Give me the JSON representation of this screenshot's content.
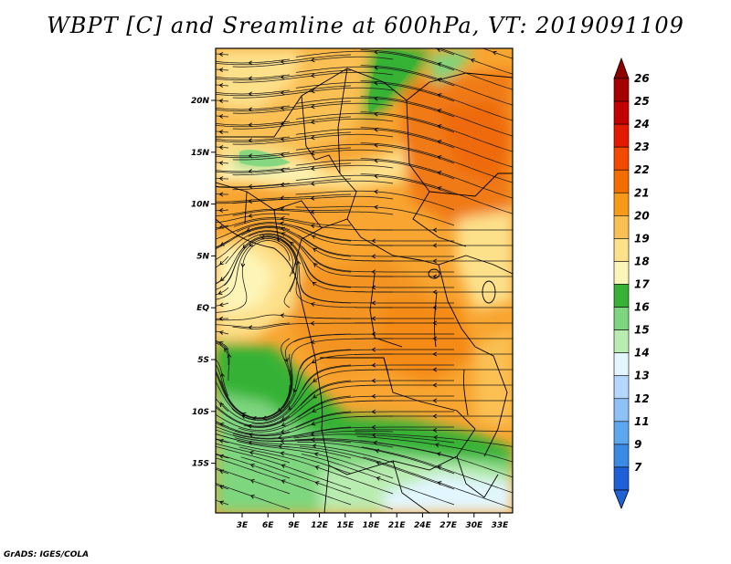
{
  "title": "WBPT [C] and Sreamline at 600hPa, VT: 2019091109",
  "credit": "GrADS: IGES/COLA",
  "map": {
    "lon_range": [
      0,
      35
    ],
    "lat_range": [
      -20,
      25
    ],
    "lon_ticks": [
      {
        "value": 3,
        "label": "3E"
      },
      {
        "value": 6,
        "label": "6E"
      },
      {
        "value": 9,
        "label": "9E"
      },
      {
        "value": 12,
        "label": "12E"
      },
      {
        "value": 15,
        "label": "15E"
      },
      {
        "value": 18,
        "label": "18E"
      },
      {
        "value": 21,
        "label": "21E"
      },
      {
        "value": 24,
        "label": "24E"
      },
      {
        "value": 27,
        "label": "27E"
      },
      {
        "value": 30,
        "label": "30E"
      },
      {
        "value": 33,
        "label": "33E"
      }
    ],
    "lat_ticks": [
      {
        "value": 20,
        "label": "20N"
      },
      {
        "value": 15,
        "label": "15N"
      },
      {
        "value": 10,
        "label": "10N"
      },
      {
        "value": 5,
        "label": "5N"
      },
      {
        "value": 0,
        "label": "EQ"
      },
      {
        "value": -5,
        "label": "5S"
      },
      {
        "value": -10,
        "label": "10S"
      },
      {
        "value": -15,
        "label": "15S"
      }
    ]
  },
  "colorbar": {
    "levels": [
      {
        "label": "26",
        "color": "#a50000"
      },
      {
        "label": "25",
        "color": "#c20000"
      },
      {
        "label": "24",
        "color": "#e11a00"
      },
      {
        "label": "23",
        "color": "#f24a00"
      },
      {
        "label": "22",
        "color": "#f26e00"
      },
      {
        "label": "21",
        "color": "#f79a1a"
      },
      {
        "label": "20",
        "color": "#fbc053"
      },
      {
        "label": "19",
        "color": "#fde08a"
      },
      {
        "label": "18",
        "color": "#fdf5b8"
      },
      {
        "label": "17",
        "color": "#36b236"
      },
      {
        "label": "16",
        "color": "#7ed67e"
      },
      {
        "label": "15",
        "color": "#b9ecb0"
      },
      {
        "label": "14",
        "color": "#e2f6ff"
      },
      {
        "label": "13",
        "color": "#b4d7ff"
      },
      {
        "label": "12",
        "color": "#8ec2f7"
      },
      {
        "label": "11",
        "color": "#5da7ef"
      },
      {
        "label": "9",
        "color": "#3b8ae6"
      },
      {
        "label": "7",
        "color": "#1e5ed6"
      }
    ],
    "top_arrow_color": "#8c0000",
    "bottom_arrow_color": "#1f62d6"
  }
}
